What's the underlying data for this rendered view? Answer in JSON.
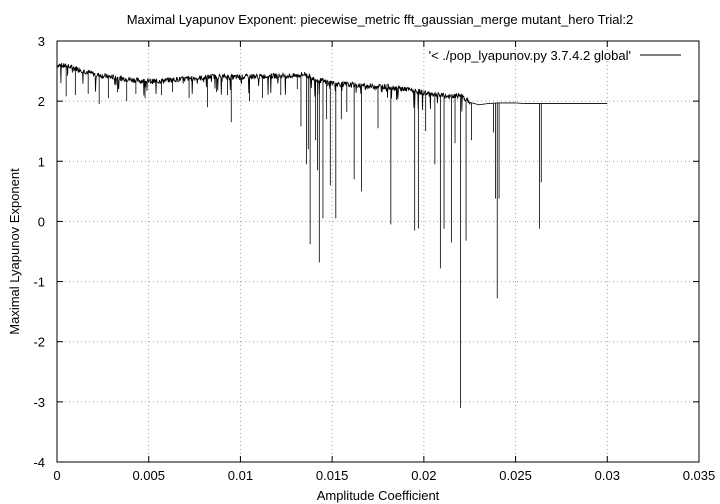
{
  "chart_data": {
    "type": "line",
    "title": "Maximal Lyapunov Exponent: piecewise_metric fft_gaussian_merge mutant_hero Trial:2",
    "xlabel": "Amplitude Coefficient",
    "ylabel": "Maximal Lyapunov Exponent",
    "xlim": [
      0,
      0.035
    ],
    "ylim": [
      -4,
      3
    ],
    "x_ticks": [
      0,
      0.005,
      0.01,
      0.015,
      0.02,
      0.025,
      0.03,
      0.035
    ],
    "x_tick_labels": [
      "0",
      "0.005",
      "0.01",
      "0.015",
      "0.02",
      "0.025",
      "0.03",
      "0.035"
    ],
    "y_ticks": [
      -4,
      -3,
      -2,
      -1,
      0,
      1,
      2,
      3
    ],
    "y_tick_labels": [
      "-4",
      "-3",
      "-2",
      "-1",
      "0",
      "1",
      "2",
      "3"
    ],
    "grid": true,
    "legend_position": "top-right",
    "series": [
      {
        "name": "'< ./pop_lyapunov.py 3.7.4.2 global'",
        "color": "#000000",
        "baseline": [
          [
            0,
            2.6
          ],
          [
            0.0005,
            2.58
          ],
          [
            0.001,
            2.55
          ],
          [
            0.0015,
            2.5
          ],
          [
            0.002,
            2.45
          ],
          [
            0.0025,
            2.42
          ],
          [
            0.003,
            2.4
          ],
          [
            0.0035,
            2.38
          ],
          [
            0.004,
            2.36
          ],
          [
            0.0045,
            2.34
          ],
          [
            0.005,
            2.33
          ],
          [
            0.0055,
            2.33
          ],
          [
            0.006,
            2.35
          ],
          [
            0.0065,
            2.36
          ],
          [
            0.007,
            2.37
          ],
          [
            0.0075,
            2.38
          ],
          [
            0.008,
            2.39
          ],
          [
            0.0085,
            2.41
          ],
          [
            0.009,
            2.41
          ],
          [
            0.0095,
            2.4
          ],
          [
            0.01,
            2.4
          ],
          [
            0.0105,
            2.41
          ],
          [
            0.011,
            2.41
          ],
          [
            0.0115,
            2.42
          ],
          [
            0.012,
            2.42
          ],
          [
            0.0125,
            2.42
          ],
          [
            0.013,
            2.42
          ],
          [
            0.0135,
            2.45
          ],
          [
            0.014,
            2.37
          ],
          [
            0.0145,
            2.33
          ],
          [
            0.015,
            2.3
          ],
          [
            0.0155,
            2.28
          ],
          [
            0.016,
            2.27
          ],
          [
            0.0165,
            2.26
          ],
          [
            0.017,
            2.25
          ],
          [
            0.0175,
            2.25
          ],
          [
            0.018,
            2.24
          ],
          [
            0.0185,
            2.22
          ],
          [
            0.019,
            2.2
          ],
          [
            0.0195,
            2.17
          ],
          [
            0.02,
            2.14
          ],
          [
            0.0205,
            2.12
          ],
          [
            0.021,
            2.09
          ],
          [
            0.0215,
            2.07
          ],
          [
            0.022,
            2.1
          ],
          [
            0.0225,
            1.98
          ],
          [
            0.023,
            1.94
          ],
          [
            0.0235,
            1.96
          ],
          [
            0.024,
            1.97
          ],
          [
            0.0245,
            1.97
          ],
          [
            0.025,
            1.97
          ],
          [
            0.0255,
            1.96
          ],
          [
            0.026,
            1.96
          ],
          [
            0.0265,
            1.96
          ],
          [
            0.027,
            1.96
          ],
          [
            0.0275,
            1.96
          ],
          [
            0.028,
            1.96
          ],
          [
            0.0285,
            1.96
          ],
          [
            0.029,
            1.96
          ],
          [
            0.0295,
            1.96
          ],
          [
            0.03,
            1.96
          ]
        ],
        "noise_x_range": [
          0,
          0.0225
        ],
        "dips": [
          [
            0.0005,
            2.08
          ],
          [
            0.001,
            2.1
          ],
          [
            0.0017,
            2.12
          ],
          [
            0.0023,
            1.95
          ],
          [
            0.0028,
            2.05
          ],
          [
            0.0033,
            2.15
          ],
          [
            0.0038,
            2.0
          ],
          [
            0.0043,
            2.12
          ],
          [
            0.0048,
            2.05
          ],
          [
            0.0057,
            2.1
          ],
          [
            0.0063,
            2.15
          ],
          [
            0.0072,
            2.05
          ],
          [
            0.0082,
            1.9
          ],
          [
            0.0087,
            2.15
          ],
          [
            0.0093,
            2.1
          ],
          [
            0.0095,
            1.65
          ],
          [
            0.0105,
            2.0
          ],
          [
            0.0112,
            2.05
          ],
          [
            0.0122,
            2.1
          ],
          [
            0.0131,
            2.2
          ],
          [
            0.0133,
            1.58
          ],
          [
            0.0136,
            0.95
          ],
          [
            0.0137,
            1.2
          ],
          [
            0.0138,
            -0.38
          ],
          [
            0.0141,
            1.35
          ],
          [
            0.0142,
            0.85
          ],
          [
            0.0143,
            -0.68
          ],
          [
            0.0145,
            0.05
          ],
          [
            0.0147,
            1.7
          ],
          [
            0.0149,
            0.6
          ],
          [
            0.0152,
            0.05
          ],
          [
            0.0155,
            1.7
          ],
          [
            0.0158,
            1.82
          ],
          [
            0.0162,
            0.7
          ],
          [
            0.0166,
            0.5
          ],
          [
            0.0175,
            1.55
          ],
          [
            0.0182,
            -0.05
          ],
          [
            0.0195,
            -0.15
          ],
          [
            0.0197,
            -0.12
          ],
          [
            0.0201,
            1.5
          ],
          [
            0.0206,
            0.95
          ],
          [
            0.0209,
            -0.78
          ],
          [
            0.0211,
            -0.12
          ],
          [
            0.0215,
            -0.35
          ],
          [
            0.0217,
            1.3
          ],
          [
            0.022,
            -3.1
          ],
          [
            0.0223,
            -0.32
          ],
          [
            0.0226,
            1.35
          ],
          [
            0.0238,
            1.48
          ],
          [
            0.0239,
            0.38
          ],
          [
            0.024,
            -1.28
          ],
          [
            0.0241,
            0.38
          ],
          [
            0.0263,
            -0.12
          ],
          [
            0.0264,
            0.65
          ]
        ]
      }
    ]
  }
}
